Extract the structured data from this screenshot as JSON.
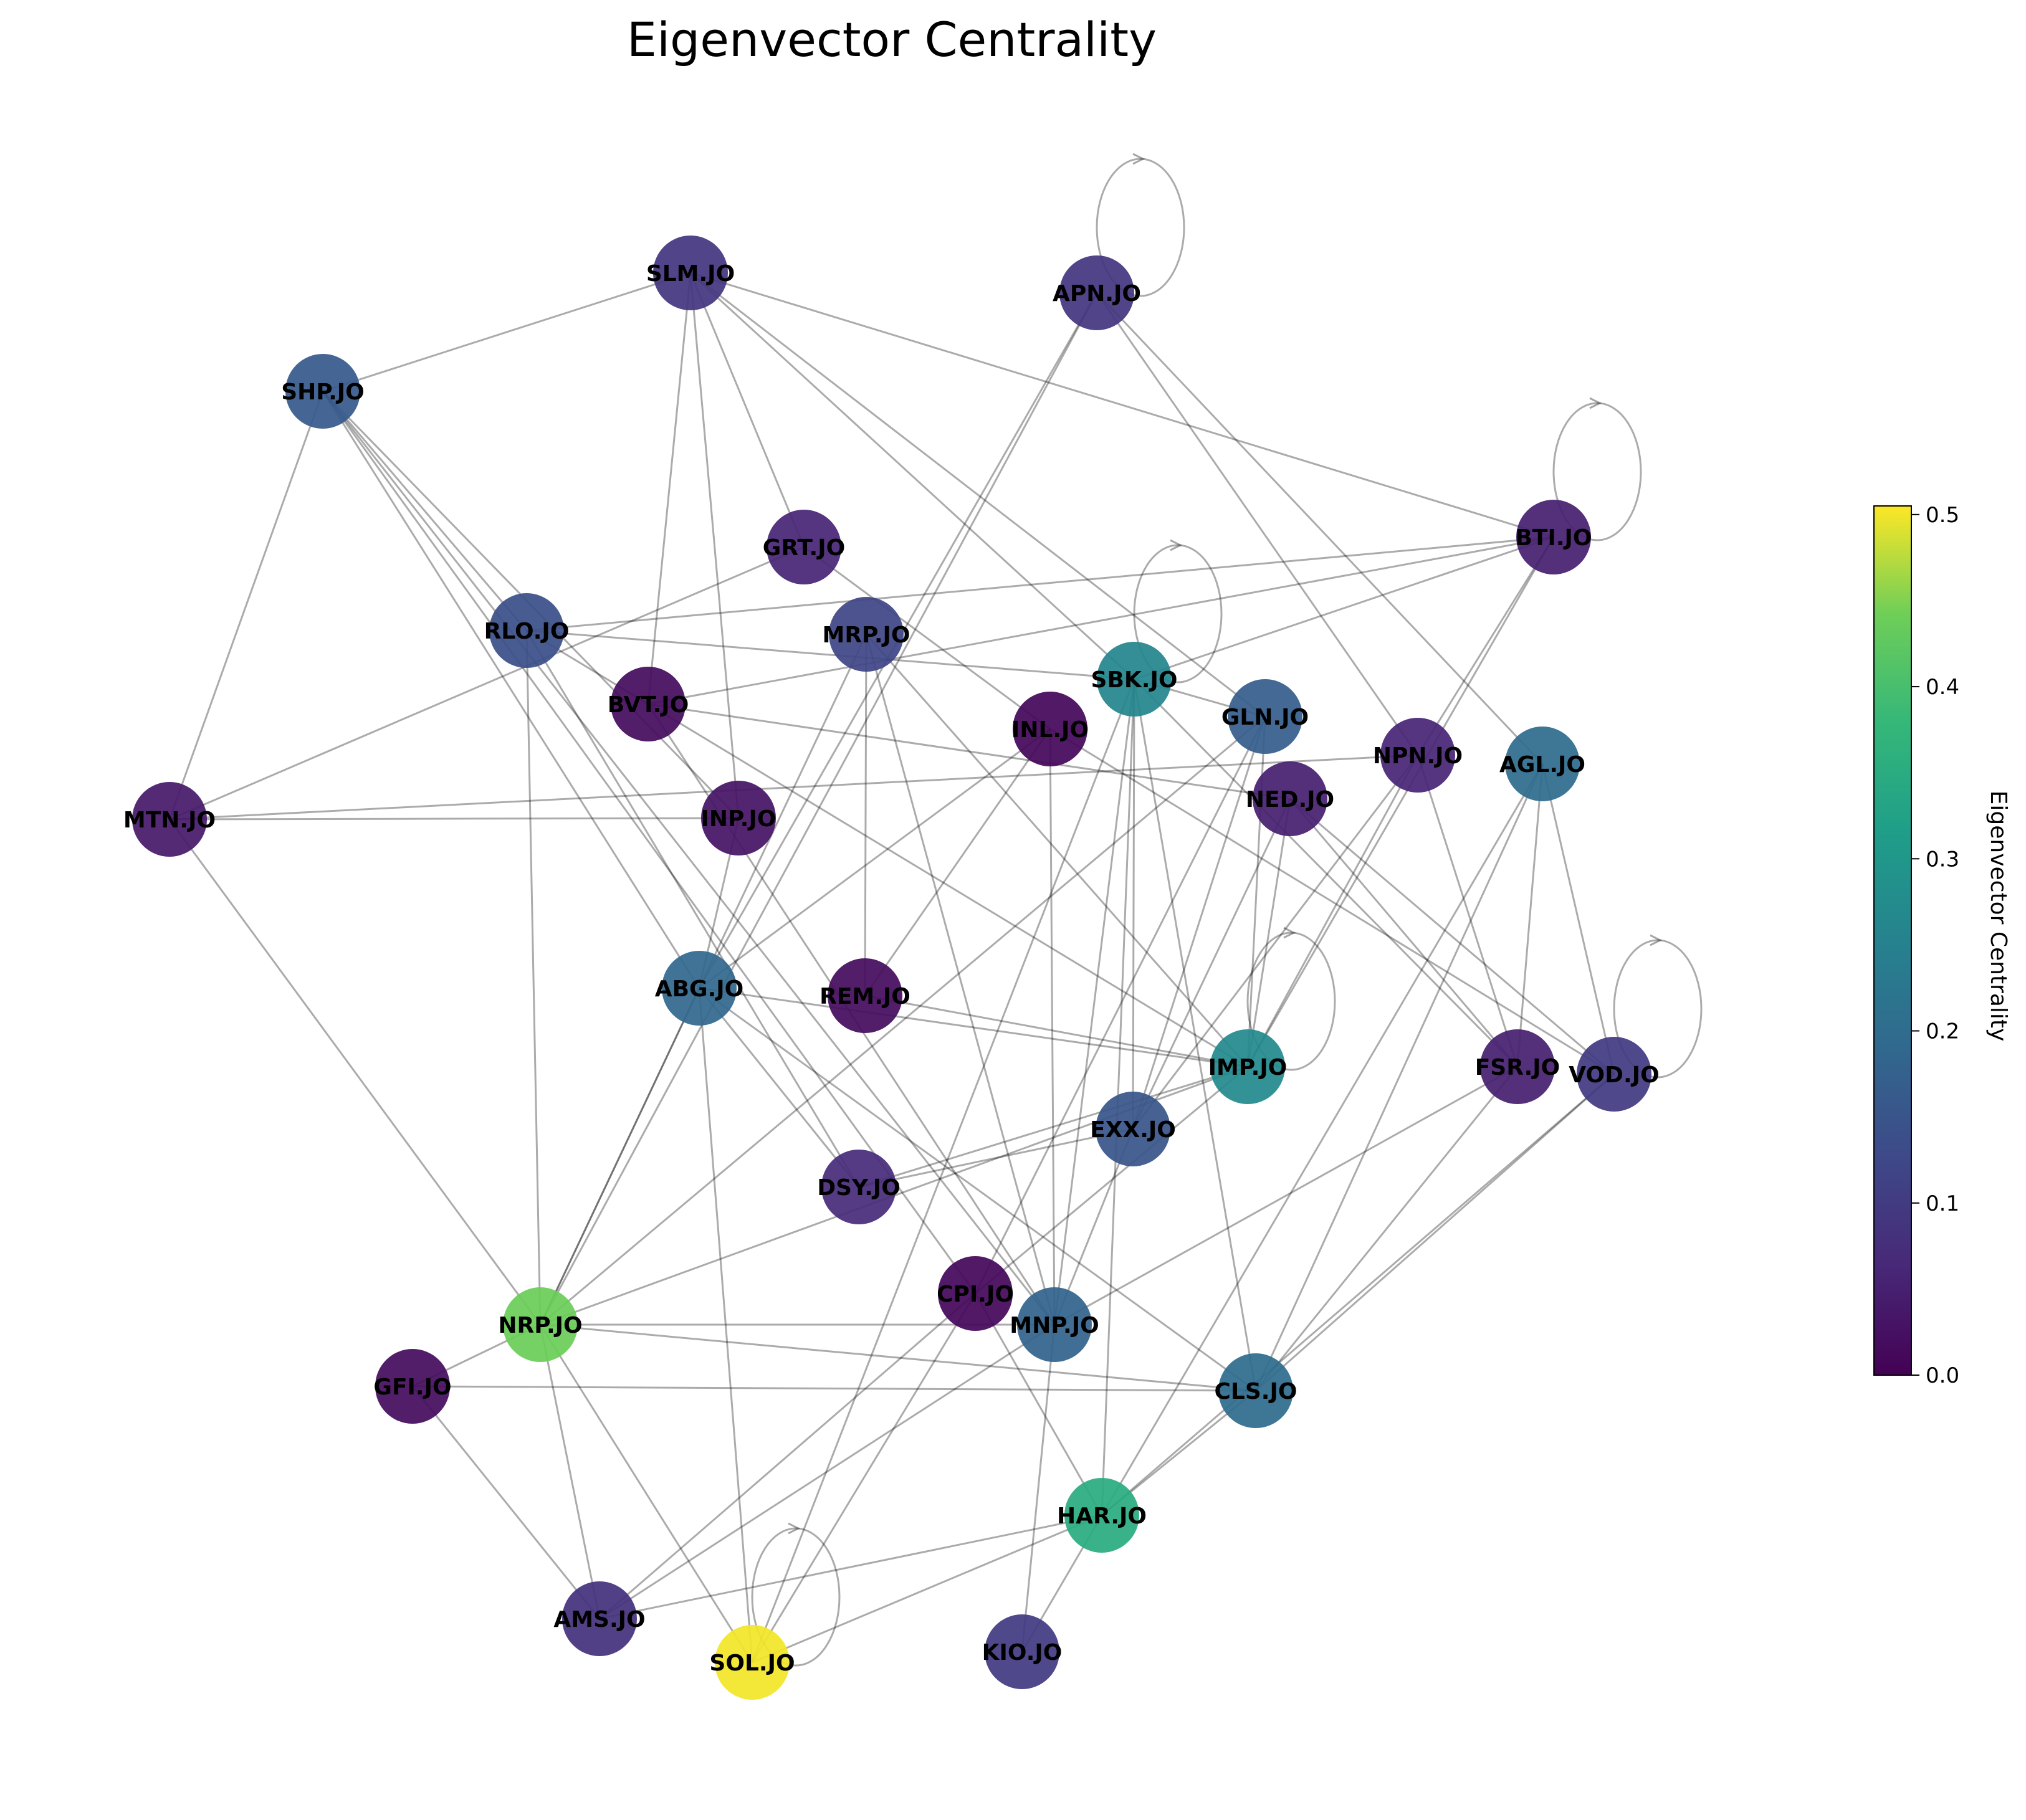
{
  "title": "Eigenvector Centrality",
  "colorbar": {
    "label": "Eigenvector Centrality",
    "ticks": [
      "0.0",
      "0.1",
      "0.2",
      "0.3",
      "0.4",
      "0.5"
    ],
    "tick_values": [
      0.0,
      0.1,
      0.2,
      0.3,
      0.4,
      0.5
    ],
    "range": [
      0.0,
      0.505
    ],
    "colormap": "viridis"
  },
  "nodes": [
    {
      "id": "SLM.JO",
      "centrality": 0.09
    },
    {
      "id": "APN.JO",
      "centrality": 0.09
    },
    {
      "id": "SHP.JO",
      "centrality": 0.16
    },
    {
      "id": "BTI.JO",
      "centrality": 0.05
    },
    {
      "id": "GRT.JO",
      "centrality": 0.06
    },
    {
      "id": "RLO.JO",
      "centrality": 0.14
    },
    {
      "id": "MRP.JO",
      "centrality": 0.12
    },
    {
      "id": "SBK.JO",
      "centrality": 0.26
    },
    {
      "id": "BVT.JO",
      "centrality": 0.02
    },
    {
      "id": "INL.JO",
      "centrality": 0.01
    },
    {
      "id": "GLN.JO",
      "centrality": 0.17
    },
    {
      "id": "NPN.JO",
      "centrality": 0.06
    },
    {
      "id": "AGL.JO",
      "centrality": 0.2
    },
    {
      "id": "NED.JO",
      "centrality": 0.05
    },
    {
      "id": "MTN.JO",
      "centrality": 0.04
    },
    {
      "id": "INP.JO",
      "centrality": 0.03
    },
    {
      "id": "ABG.JO",
      "centrality": 0.19
    },
    {
      "id": "REM.JO",
      "centrality": 0.02
    },
    {
      "id": "FSR.JO",
      "centrality": 0.05
    },
    {
      "id": "VOD.JO",
      "centrality": 0.1
    },
    {
      "id": "IMP.JO",
      "centrality": 0.27
    },
    {
      "id": "EXX.JO",
      "centrality": 0.15
    },
    {
      "id": "DSY.JO",
      "centrality": 0.07
    },
    {
      "id": "CPI.JO",
      "centrality": 0.01
    },
    {
      "id": "MNP.JO",
      "centrality": 0.18
    },
    {
      "id": "NRP.JO",
      "centrality": 0.44
    },
    {
      "id": "GFI.JO",
      "centrality": 0.02
    },
    {
      "id": "CLS.JO",
      "centrality": 0.2
    },
    {
      "id": "HAR.JO",
      "centrality": 0.35
    },
    {
      "id": "AMS.JO",
      "centrality": 0.08
    },
    {
      "id": "SOL.JO",
      "centrality": 0.5
    },
    {
      "id": "KIO.JO",
      "centrality": 0.1
    }
  ],
  "edges": [
    [
      "SLM.JO",
      "SHP.JO"
    ],
    [
      "SLM.JO",
      "GRT.JO"
    ],
    [
      "SLM.JO",
      "BVT.JO"
    ],
    [
      "SLM.JO",
      "INP.JO"
    ],
    [
      "SLM.JO",
      "SBK.JO"
    ],
    [
      "SLM.JO",
      "BTI.JO"
    ],
    [
      "SLM.JO",
      "GLN.JO"
    ],
    [
      "APN.JO",
      "APN.JO"
    ],
    [
      "APN.JO",
      "NRP.JO"
    ],
    [
      "APN.JO",
      "NPN.JO"
    ],
    [
      "APN.JO",
      "AGL.JO"
    ],
    [
      "APN.JO",
      "ABG.JO"
    ],
    [
      "SHP.JO",
      "MTN.JO"
    ],
    [
      "SHP.JO",
      "RLO.JO"
    ],
    [
      "SHP.JO",
      "ABG.JO"
    ],
    [
      "SHP.JO",
      "INP.JO"
    ],
    [
      "SHP.JO",
      "CPI.JO"
    ],
    [
      "SHP.JO",
      "MNP.JO"
    ],
    [
      "BTI.JO",
      "BTI.JO"
    ],
    [
      "BTI.JO",
      "RLO.JO"
    ],
    [
      "BTI.JO",
      "SBK.JO"
    ],
    [
      "BTI.JO",
      "BVT.JO"
    ],
    [
      "BTI.JO",
      "NPN.JO"
    ],
    [
      "BTI.JO",
      "IMP.JO"
    ],
    [
      "GRT.JO",
      "MTN.JO"
    ],
    [
      "GRT.JO",
      "INL.JO"
    ],
    [
      "RLO.JO",
      "NRP.JO"
    ],
    [
      "RLO.JO",
      "SBK.JO"
    ],
    [
      "RLO.JO",
      "DSY.JO"
    ],
    [
      "RLO.JO",
      "IMP.JO"
    ],
    [
      "MRP.JO",
      "REM.JO"
    ],
    [
      "MRP.JO",
      "MNP.JO"
    ],
    [
      "MRP.JO",
      "IMP.JO"
    ],
    [
      "MRP.JO",
      "NRP.JO"
    ],
    [
      "SBK.JO",
      "SBK.JO"
    ],
    [
      "SBK.JO",
      "GLN.JO"
    ],
    [
      "SBK.JO",
      "EXX.JO"
    ],
    [
      "SBK.JO",
      "SOL.JO"
    ],
    [
      "SBK.JO",
      "CLS.JO"
    ],
    [
      "SBK.JO",
      "MNP.JO"
    ],
    [
      "SBK.JO",
      "FSR.JO"
    ],
    [
      "SBK.JO",
      "HAR.JO"
    ],
    [
      "BVT.JO",
      "NED.JO"
    ],
    [
      "BVT.JO",
      "MNP.JO"
    ],
    [
      "INL.JO",
      "REM.JO"
    ],
    [
      "INL.JO",
      "MNP.JO"
    ],
    [
      "INL.JO",
      "VOD.JO"
    ],
    [
      "INL.JO",
      "ABG.JO"
    ],
    [
      "GLN.JO",
      "NRP.JO"
    ],
    [
      "GLN.JO",
      "IMP.JO"
    ],
    [
      "GLN.JO",
      "EXX.JO"
    ],
    [
      "GLN.JO",
      "CPI.JO"
    ],
    [
      "NPN.JO",
      "MTN.JO"
    ],
    [
      "NPN.JO",
      "FSR.JO"
    ],
    [
      "NPN.JO",
      "EXX.JO"
    ],
    [
      "NPN.JO",
      "IMP.JO"
    ],
    [
      "AGL.JO",
      "FSR.JO"
    ],
    [
      "AGL.JO",
      "VOD.JO"
    ],
    [
      "AGL.JO",
      "HAR.JO"
    ],
    [
      "AGL.JO",
      "CLS.JO"
    ],
    [
      "NED.JO",
      "VOD.JO"
    ],
    [
      "NED.JO",
      "FSR.JO"
    ],
    [
      "NED.JO",
      "IMP.JO"
    ],
    [
      "NED.JO",
      "EXX.JO"
    ],
    [
      "MTN.JO",
      "INP.JO"
    ],
    [
      "MTN.JO",
      "NRP.JO"
    ],
    [
      "INP.JO",
      "ABG.JO"
    ],
    [
      "ABG.JO",
      "DSY.JO"
    ],
    [
      "ABG.JO",
      "SOL.JO"
    ],
    [
      "ABG.JO",
      "CLS.JO"
    ],
    [
      "ABG.JO",
      "IMP.JO"
    ],
    [
      "ABG.JO",
      "NRP.JO"
    ],
    [
      "REM.JO",
      "IMP.JO"
    ],
    [
      "FSR.JO",
      "MNP.JO"
    ],
    [
      "FSR.JO",
      "CLS.JO"
    ],
    [
      "VOD.JO",
      "VOD.JO"
    ],
    [
      "VOD.JO",
      "CLS.JO"
    ],
    [
      "VOD.JO",
      "HAR.JO"
    ],
    [
      "IMP.JO",
      "IMP.JO"
    ],
    [
      "IMP.JO",
      "NRP.JO"
    ],
    [
      "IMP.JO",
      "DSY.JO"
    ],
    [
      "IMP.JO",
      "CPI.JO"
    ],
    [
      "EXX.JO",
      "DSY.JO"
    ],
    [
      "EXX.JO",
      "MNP.JO"
    ],
    [
      "CPI.JO",
      "HAR.JO"
    ],
    [
      "CPI.JO",
      "AMS.JO"
    ],
    [
      "MNP.JO",
      "AMS.JO"
    ],
    [
      "MNP.JO",
      "KIO.JO"
    ],
    [
      "NRP.JO",
      "MNP.JO"
    ],
    [
      "NRP.JO",
      "CLS.JO"
    ],
    [
      "NRP.JO",
      "GFI.JO"
    ],
    [
      "NRP.JO",
      "SOL.JO"
    ],
    [
      "NRP.JO",
      "AMS.JO"
    ],
    [
      "GFI.JO",
      "CLS.JO"
    ],
    [
      "GFI.JO",
      "AMS.JO"
    ],
    [
      "CLS.JO",
      "HAR.JO"
    ],
    [
      "HAR.JO",
      "SOL.JO"
    ],
    [
      "HAR.JO",
      "AMS.JO"
    ],
    [
      "HAR.JO",
      "KIO.JO"
    ],
    [
      "SOL.JO",
      "SOL.JO"
    ],
    [
      "SOL.JO",
      "CPI.JO"
    ]
  ]
}
